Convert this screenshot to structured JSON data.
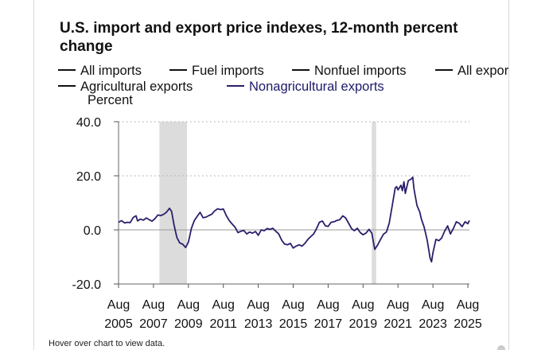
{
  "chart_data": {
    "type": "line",
    "title": "U.S. import and export price indexes, 12-month percent change",
    "ylabel": "Percent",
    "xlabel": "",
    "ylim": [
      -20,
      40
    ],
    "yticks": [
      "40.0",
      "20.0",
      "0.0",
      "-20.0"
    ],
    "ytick_values": [
      40,
      20,
      0,
      -20
    ],
    "xlim": [
      2005.58,
      2025.67
    ],
    "xtick_values": [
      2005.58,
      2007.58,
      2009.58,
      2011.58,
      2013.58,
      2015.58,
      2017.58,
      2019.58,
      2021.58,
      2023.58,
      2025.58
    ],
    "xtick_months": [
      "Aug",
      "Aug",
      "Aug",
      "Aug",
      "Aug",
      "Aug",
      "Aug",
      "Aug",
      "Aug",
      "Aug",
      "Aug"
    ],
    "xtick_years": [
      "2005",
      "2007",
      "2009",
      "2011",
      "2013",
      "2015",
      "2017",
      "2019",
      "2021",
      "2023",
      "2025"
    ],
    "recessions": [
      [
        2007.92,
        2009.5
      ],
      [
        2020.08,
        2020.33
      ]
    ],
    "legend": [
      {
        "name": "All imports",
        "color": "#111111",
        "visible": false
      },
      {
        "name": "Fuel imports",
        "color": "#111111",
        "visible": false
      },
      {
        "name": "Nonfuel imports",
        "color": "#111111",
        "visible": false
      },
      {
        "name": "All exports",
        "color": "#111111",
        "visible": false
      },
      {
        "name": "Agricultural exports",
        "color": "#111111",
        "visible": false
      },
      {
        "name": "Nonagricultural exports",
        "color": "#2c1e6b",
        "visible": true
      }
    ],
    "series": [
      {
        "name": "Nonagricultural exports",
        "color": "#2c1e6b",
        "points": [
          [
            2005.58,
            2.8
          ],
          [
            2005.75,
            3.4
          ],
          [
            2005.92,
            2.6
          ],
          [
            2006.08,
            2.8
          ],
          [
            2006.25,
            2.7
          ],
          [
            2006.42,
            4.6
          ],
          [
            2006.58,
            5.2
          ],
          [
            2006.67,
            3.3
          ],
          [
            2006.83,
            4.0
          ],
          [
            2007.0,
            3.6
          ],
          [
            2007.17,
            4.4
          ],
          [
            2007.33,
            3.8
          ],
          [
            2007.5,
            3.2
          ],
          [
            2007.67,
            4.2
          ],
          [
            2007.83,
            5.5
          ],
          [
            2008.0,
            5.3
          ],
          [
            2008.17,
            5.8
          ],
          [
            2008.33,
            6.6
          ],
          [
            2008.5,
            8.0
          ],
          [
            2008.62,
            6.8
          ],
          [
            2008.75,
            2.0
          ],
          [
            2008.92,
            -2.8
          ],
          [
            2009.08,
            -4.8
          ],
          [
            2009.25,
            -5.3
          ],
          [
            2009.42,
            -6.5
          ],
          [
            2009.58,
            -4.5
          ],
          [
            2009.75,
            0.5
          ],
          [
            2009.92,
            3.5
          ],
          [
            2010.08,
            5.0
          ],
          [
            2010.25,
            6.5
          ],
          [
            2010.42,
            4.5
          ],
          [
            2010.58,
            4.7
          ],
          [
            2010.75,
            5.3
          ],
          [
            2010.92,
            5.8
          ],
          [
            2011.08,
            7.0
          ],
          [
            2011.25,
            7.8
          ],
          [
            2011.42,
            7.5
          ],
          [
            2011.58,
            7.7
          ],
          [
            2011.75,
            5.3
          ],
          [
            2011.92,
            3.4
          ],
          [
            2012.08,
            2.2
          ],
          [
            2012.25,
            1.0
          ],
          [
            2012.42,
            -1.0
          ],
          [
            2012.58,
            -0.5
          ],
          [
            2012.75,
            -0.2
          ],
          [
            2012.92,
            -1.5
          ],
          [
            2013.08,
            -0.8
          ],
          [
            2013.25,
            -1.2
          ],
          [
            2013.42,
            -0.6
          ],
          [
            2013.58,
            -2.0
          ],
          [
            2013.75,
            0.0
          ],
          [
            2013.92,
            -0.3
          ],
          [
            2014.08,
            0.5
          ],
          [
            2014.25,
            0.2
          ],
          [
            2014.42,
            0.6
          ],
          [
            2014.58,
            -0.5
          ],
          [
            2014.75,
            -1.5
          ],
          [
            2014.92,
            -3.8
          ],
          [
            2015.08,
            -5.2
          ],
          [
            2015.25,
            -5.5
          ],
          [
            2015.42,
            -5.0
          ],
          [
            2015.58,
            -6.7
          ],
          [
            2015.75,
            -6.0
          ],
          [
            2015.92,
            -5.5
          ],
          [
            2016.08,
            -6.0
          ],
          [
            2016.25,
            -5.0
          ],
          [
            2016.42,
            -3.5
          ],
          [
            2016.58,
            -2.5
          ],
          [
            2016.75,
            -1.5
          ],
          [
            2016.92,
            0.5
          ],
          [
            2017.08,
            2.8
          ],
          [
            2017.25,
            3.3
          ],
          [
            2017.42,
            1.5
          ],
          [
            2017.58,
            1.3
          ],
          [
            2017.75,
            2.8
          ],
          [
            2017.92,
            3.0
          ],
          [
            2018.08,
            3.5
          ],
          [
            2018.25,
            3.8
          ],
          [
            2018.42,
            5.2
          ],
          [
            2018.58,
            4.4
          ],
          [
            2018.75,
            2.5
          ],
          [
            2018.92,
            0.5
          ],
          [
            2019.08,
            -0.3
          ],
          [
            2019.25,
            0.6
          ],
          [
            2019.42,
            -1.0
          ],
          [
            2019.58,
            -1.8
          ],
          [
            2019.75,
            -1.2
          ],
          [
            2019.92,
            0.2
          ],
          [
            2020.08,
            -1.2
          ],
          [
            2020.25,
            -7.2
          ],
          [
            2020.42,
            -5.5
          ],
          [
            2020.58,
            -3.5
          ],
          [
            2020.75,
            -1.6
          ],
          [
            2020.92,
            -0.8
          ],
          [
            2021.08,
            2.5
          ],
          [
            2021.25,
            9.0
          ],
          [
            2021.42,
            15.5
          ],
          [
            2021.5,
            16.0
          ],
          [
            2021.58,
            14.8
          ],
          [
            2021.75,
            16.5
          ],
          [
            2021.83,
            14.5
          ],
          [
            2021.92,
            17.8
          ],
          [
            2022.0,
            13.5
          ],
          [
            2022.17,
            18.2
          ],
          [
            2022.33,
            18.8
          ],
          [
            2022.42,
            19.5
          ],
          [
            2022.5,
            15.0
          ],
          [
            2022.67,
            9.0
          ],
          [
            2022.83,
            6.5
          ],
          [
            2022.92,
            4.0
          ],
          [
            2023.08,
            1.0
          ],
          [
            2023.25,
            -3.8
          ],
          [
            2023.42,
            -10.5
          ],
          [
            2023.5,
            -11.8
          ],
          [
            2023.58,
            -8.5
          ],
          [
            2023.75,
            -3.5
          ],
          [
            2023.92,
            -4.0
          ],
          [
            2024.08,
            -3.0
          ],
          [
            2024.25,
            -0.5
          ],
          [
            2024.42,
            1.5
          ],
          [
            2024.58,
            -1.5
          ],
          [
            2024.75,
            0.5
          ],
          [
            2024.92,
            3.0
          ],
          [
            2025.08,
            2.5
          ],
          [
            2025.25,
            1.2
          ],
          [
            2025.42,
            3.0
          ],
          [
            2025.58,
            2.3
          ],
          [
            2025.67,
            3.5
          ]
        ]
      }
    ]
  },
  "footer": {
    "hint": "Hover over chart to view data."
  }
}
